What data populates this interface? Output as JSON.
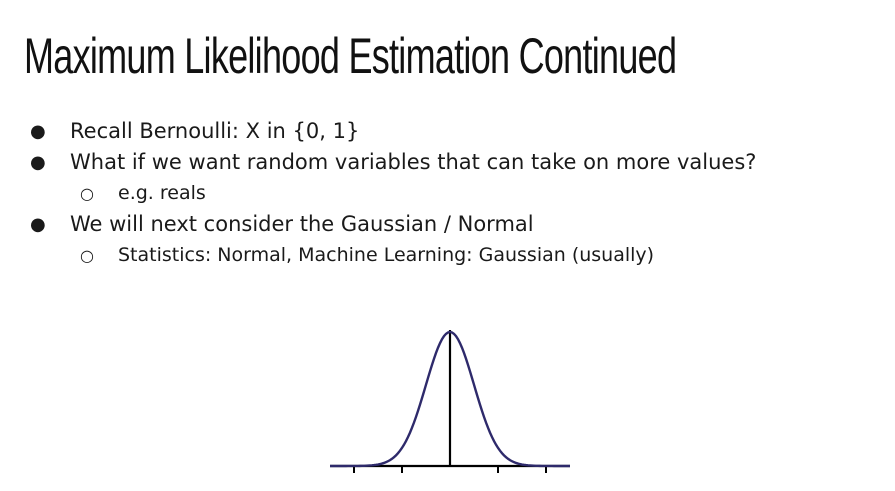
{
  "slide": {
    "title": "Maximum Likelihood Estimation Continued"
  },
  "bullets": [
    {
      "level": 1,
      "text": "Recall Bernoulli: X in {0, 1}"
    },
    {
      "level": 1,
      "text": "What if we want random variables that can take on more values?"
    },
    {
      "level": 2,
      "text": "e.g. reals"
    },
    {
      "level": 1,
      "text": "We will next consider the Gaussian / Normal"
    },
    {
      "level": 2,
      "text": "Statistics: Normal, Machine Learning: Gaussian (usually)"
    }
  ],
  "markers": {
    "level1": "●",
    "level2": "○"
  },
  "figure": {
    "curve_color": "#2e2a6b",
    "axis_color": "#000000"
  }
}
